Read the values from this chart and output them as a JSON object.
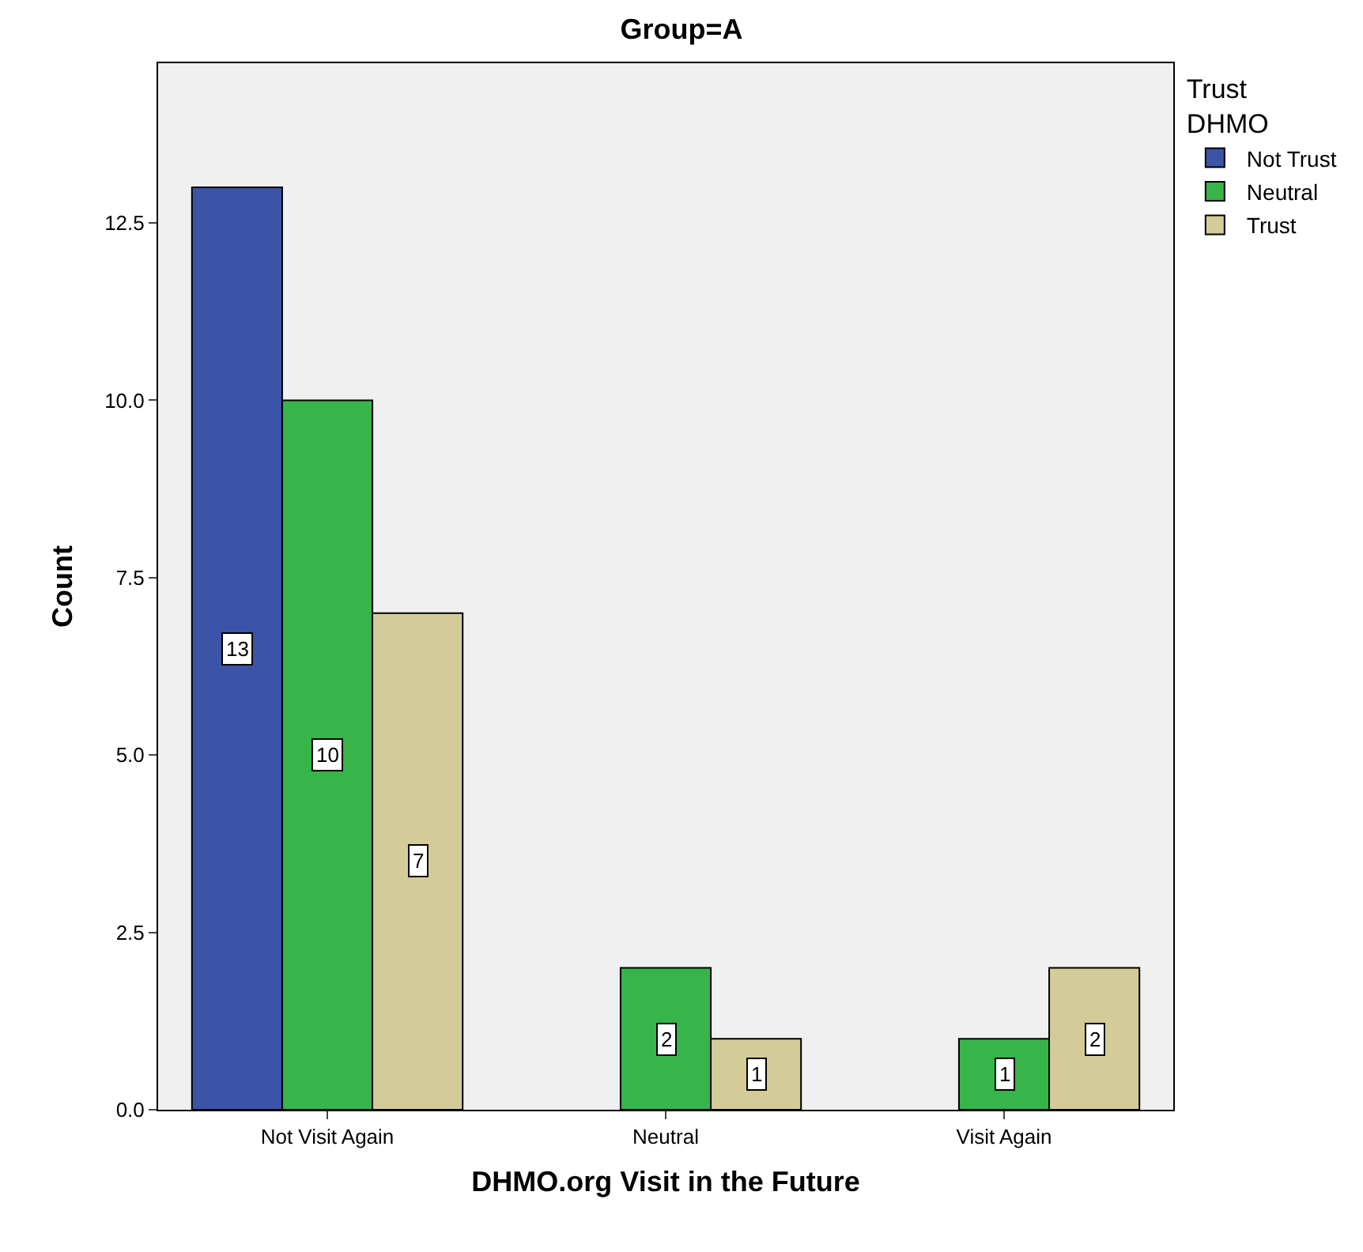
{
  "chart_data": {
    "type": "bar",
    "title": "Group=A",
    "xlabel": "DHMO.org Visit in the Future",
    "ylabel": "Count",
    "legend_title": "Trust\nDHMO",
    "categories": [
      "Not Visit Again",
      "Neutral",
      "Visit Again"
    ],
    "series": [
      {
        "name": "Not Trust",
        "color": "#3c54a8",
        "values": [
          13,
          null,
          null
        ]
      },
      {
        "name": "Neutral",
        "color": "#37b44a",
        "values": [
          10,
          2,
          1
        ]
      },
      {
        "name": "Trust",
        "color": "#d4cc98",
        "values": [
          7,
          1,
          2
        ]
      }
    ],
    "ylim": [
      0,
      14.75
    ],
    "yticks": [
      {
        "value": 0,
        "label": "0.0"
      },
      {
        "value": 2.5,
        "label": "2.5"
      },
      {
        "value": 5,
        "label": "5.0"
      },
      {
        "value": 7.5,
        "label": "7.5"
      },
      {
        "value": 10,
        "label": "10.0"
      },
      {
        "value": 12.5,
        "label": "12.5"
      }
    ],
    "grid": false,
    "legend": "top right",
    "data_labels": true
  }
}
